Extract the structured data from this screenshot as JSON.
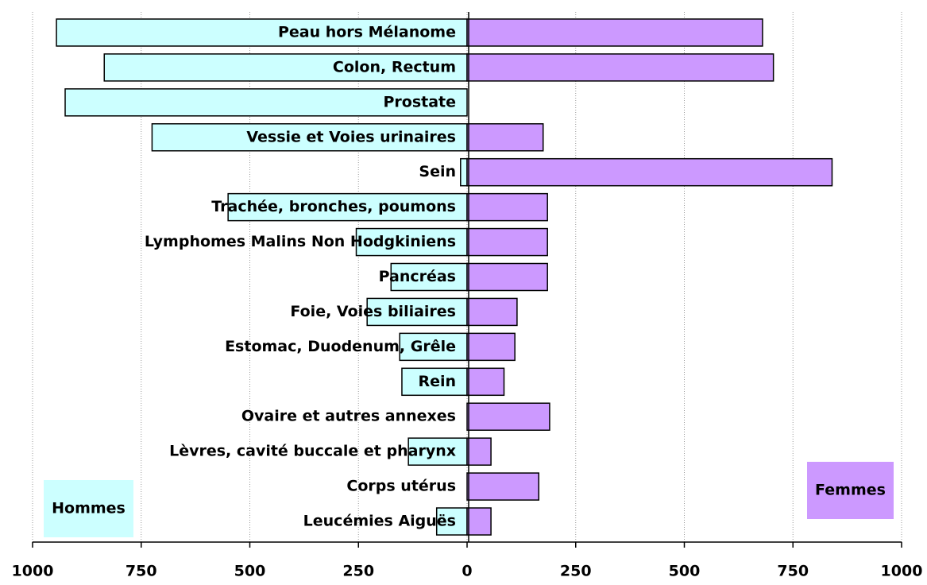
{
  "chart_data": {
    "type": "butterfly-bar",
    "categories": [
      "Peau hors Mélanome",
      "Colon, Rectum",
      "Prostate",
      "Vessie et Voies urinaires",
      "Sein",
      "Trachée, bronches, poumons",
      "Lymphomes Malins Non Hodgkiniens",
      "Pancréas",
      "Foie, Voies biliaires",
      "Estomac, Duodenum, Grêle",
      "Rein",
      "Ovaire et autres annexes",
      "Lèvres, cavité buccale et pharynx",
      "Corps utérus",
      "Leucémies Aiguës"
    ],
    "series": [
      {
        "name": "Hommes",
        "color": "#ccffff",
        "values": [
          -945,
          -835,
          -925,
          -725,
          -15,
          -550,
          -255,
          -175,
          -230,
          -155,
          -150,
          0,
          -135,
          0,
          -70
        ]
      },
      {
        "name": "Femmes",
        "color": "#cc99ff",
        "values": [
          680,
          705,
          0,
          175,
          840,
          185,
          185,
          185,
          115,
          110,
          85,
          190,
          55,
          165,
          55
        ]
      }
    ],
    "xlim": [
      -1000,
      1000
    ],
    "xticks": [
      {
        "value": -1000,
        "label": "1000"
      },
      {
        "value": -750,
        "label": "750"
      },
      {
        "value": -500,
        "label": "500"
      },
      {
        "value": -250,
        "label": "250"
      },
      0,
      250,
      500,
      750,
      1000
    ],
    "grid": true
  }
}
